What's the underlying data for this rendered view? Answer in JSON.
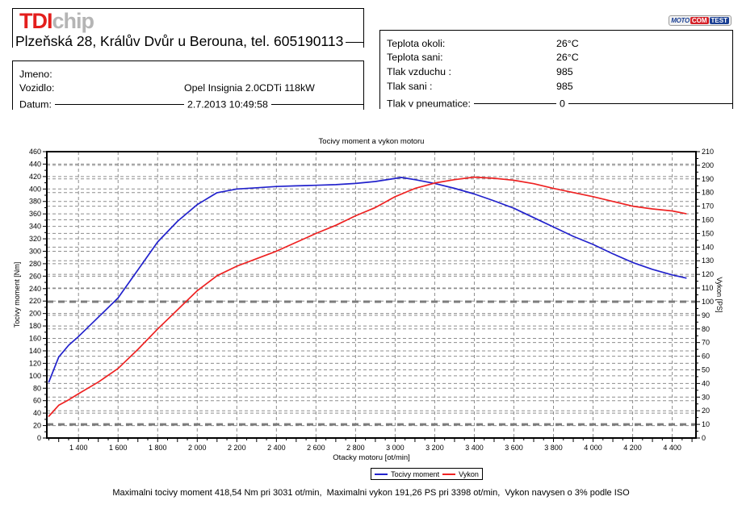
{
  "header": {
    "logo": {
      "part1": "TDI",
      "part2": "chip"
    },
    "address": "Plzeňská 28, Králův Dvůr u Berouna, tel. 605190113",
    "info_left": {
      "rows": [
        {
          "label": "Jmeno:",
          "value": ""
        },
        {
          "label": "Vozidlo:",
          "value": "Opel Insignia 2.0CDTi 118kW"
        },
        {
          "label": "Datum:",
          "value": "2.7.2013 10:49:58"
        }
      ]
    },
    "brand_badge": {
      "moto": "MOTO",
      "com": "COM",
      "test": "TEST"
    },
    "info_right": {
      "rows": [
        {
          "label": "Teplota okoli:",
          "value": "26°C"
        },
        {
          "label": "Teplota sani:",
          "value": "26°C"
        },
        {
          "label": "Tlak vzduchu :",
          "value": "985"
        },
        {
          "label": "Tlak sani :",
          "value": "985"
        },
        {
          "label": "Tlak v pneumatice:",
          "value": "0"
        }
      ]
    }
  },
  "chart_data": {
    "type": "line",
    "title": "Tocivy moment a vykon motoru",
    "xlabel": "Otacky motoru [ot/min]",
    "ylabel_left": "Tocivy moment [Nm]",
    "ylabel_right": "Vykon [PS]",
    "x_range": [
      1240,
      4520
    ],
    "y_left_range": [
      0,
      460
    ],
    "y_right_range": [
      0,
      210
    ],
    "y_left_step": 20,
    "y_right_step": 10,
    "y_left_minor_step": 10,
    "y_right_minor_step": 5,
    "x_minor_step": 50,
    "x_ticks": [
      1400,
      1600,
      1800,
      2000,
      2200,
      2400,
      2600,
      2800,
      3000,
      3200,
      3400,
      3600,
      3800,
      4000,
      4200,
      4400
    ],
    "bold_right_gridlines": [
      10,
      100
    ],
    "grid": "dashed",
    "grid_color": "#8d8d8d",
    "series": [
      {
        "name": "Tocivy moment",
        "axis": "left",
        "unit": "Nm",
        "color": "#2222cc",
        "points": [
          [
            1250,
            90
          ],
          [
            1300,
            130
          ],
          [
            1350,
            149
          ],
          [
            1400,
            163
          ],
          [
            1500,
            194
          ],
          [
            1600,
            225
          ],
          [
            1700,
            270
          ],
          [
            1800,
            315
          ],
          [
            1900,
            348
          ],
          [
            2000,
            375
          ],
          [
            2100,
            394
          ],
          [
            2200,
            400
          ],
          [
            2300,
            402
          ],
          [
            2400,
            404
          ],
          [
            2500,
            405
          ],
          [
            2600,
            406
          ],
          [
            2700,
            407
          ],
          [
            2800,
            409
          ],
          [
            2900,
            412
          ],
          [
            3031,
            418.5
          ],
          [
            3100,
            415
          ],
          [
            3200,
            409
          ],
          [
            3300,
            401
          ],
          [
            3400,
            392
          ],
          [
            3500,
            381
          ],
          [
            3600,
            369
          ],
          [
            3700,
            354
          ],
          [
            3800,
            339
          ],
          [
            3900,
            324
          ],
          [
            4000,
            311
          ],
          [
            4100,
            296
          ],
          [
            4200,
            282
          ],
          [
            4300,
            271
          ],
          [
            4400,
            262
          ],
          [
            4470,
            257
          ]
        ]
      },
      {
        "name": "Vykon",
        "axis": "right",
        "unit": "PS",
        "color": "#ee2222",
        "points": [
          [
            1250,
            16
          ],
          [
            1300,
            24
          ],
          [
            1350,
            28
          ],
          [
            1400,
            32.5
          ],
          [
            1500,
            41
          ],
          [
            1600,
            51
          ],
          [
            1700,
            65
          ],
          [
            1800,
            80
          ],
          [
            1900,
            94
          ],
          [
            2000,
            108
          ],
          [
            2100,
            119
          ],
          [
            2200,
            126
          ],
          [
            2300,
            131.5
          ],
          [
            2400,
            137
          ],
          [
            2500,
            143.5
          ],
          [
            2600,
            150
          ],
          [
            2700,
            156
          ],
          [
            2800,
            163
          ],
          [
            2900,
            169
          ],
          [
            3000,
            177
          ],
          [
            3100,
            183
          ],
          [
            3200,
            187
          ],
          [
            3300,
            189.5
          ],
          [
            3398,
            191.3
          ],
          [
            3500,
            190.5
          ],
          [
            3600,
            189
          ],
          [
            3700,
            186.5
          ],
          [
            3800,
            183
          ],
          [
            3900,
            180
          ],
          [
            4000,
            177
          ],
          [
            4100,
            173.5
          ],
          [
            4200,
            170
          ],
          [
            4300,
            168
          ],
          [
            4400,
            166.5
          ],
          [
            4470,
            164.5
          ]
        ]
      }
    ],
    "max_torque": "418,54 Nm pri 3031 ot/min",
    "max_power": "191,26 PS pri 3398 ot/min"
  },
  "footer": {
    "summary": "Maximalni tocivy moment 418,54 Nm pri 3031 ot/min,  Maximalni vykon 191,26 PS pri 3398 ot/min,  Vykon navysen o 3% podle ISO"
  }
}
